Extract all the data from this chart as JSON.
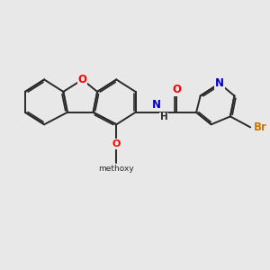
{
  "background_color": "#e8e8e8",
  "bond_color": "#2a2a2a",
  "bond_width": 1.4,
  "atom_colors": {
    "O": "#ff0000",
    "N": "#0000cd",
    "Br": "#cc7700",
    "C": "#2a2a2a"
  },
  "font_size": 8.5,
  "fig_width": 3.0,
  "fig_height": 3.0,
  "dpi": 100
}
